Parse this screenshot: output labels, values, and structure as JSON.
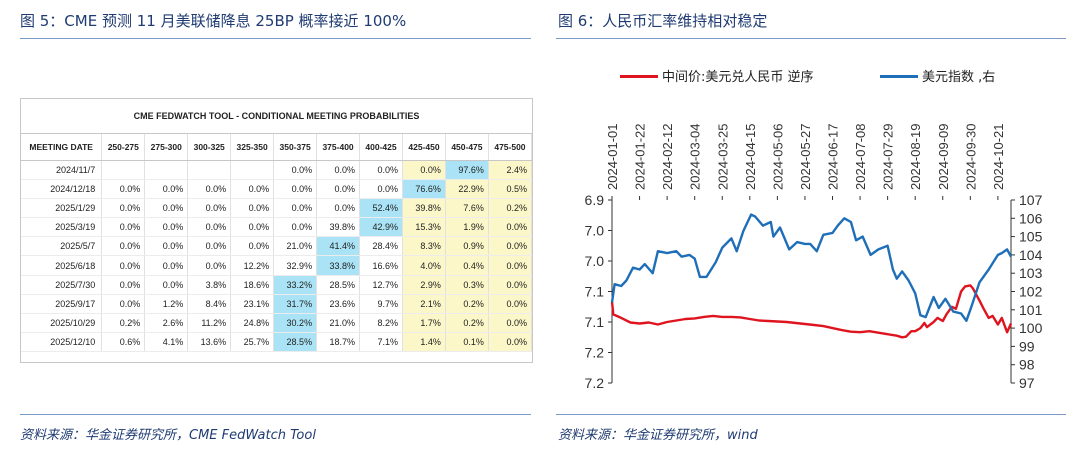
{
  "left": {
    "title": "图 5：CME 预测 11 月美联储降息 25BP 概率接近 100%",
    "source": "资料来源：华金证券研究所，CME FedWatch Tool"
  },
  "right": {
    "title": "图 6：人民币汇率维持相对稳定",
    "source": "资料来源：华金证券研究所，wind"
  },
  "colors": {
    "red": "#e0141e",
    "blue": "#1f6fb8",
    "highlight": "#a9e3f5",
    "yellow": "#fbf7c8"
  },
  "chart_data": [
    {
      "type": "table",
      "title": "CME FEDWATCH TOOL - CONDITIONAL MEETING PROBABILITIES",
      "columns": [
        "MEETING DATE",
        "250-275",
        "275-300",
        "300-325",
        "325-350",
        "350-375",
        "375-400",
        "400-425",
        "425-450",
        "450-475",
        "475-500"
      ],
      "rows": [
        [
          "2024/11/7",
          "",
          "",
          "",
          "",
          "0.0%",
          "0.0%",
          "0.0%",
          "0.0%",
          "97.6%",
          "2.4%"
        ],
        [
          "2024/12/18",
          "0.0%",
          "0.0%",
          "0.0%",
          "0.0%",
          "0.0%",
          "0.0%",
          "0.0%",
          "76.6%",
          "22.9%",
          "0.5%"
        ],
        [
          "2025/1/29",
          "0.0%",
          "0.0%",
          "0.0%",
          "0.0%",
          "0.0%",
          "0.0%",
          "52.4%",
          "39.8%",
          "7.6%",
          "0.2%"
        ],
        [
          "2025/3/19",
          "0.0%",
          "0.0%",
          "0.0%",
          "0.0%",
          "0.0%",
          "39.8%",
          "42.9%",
          "15.3%",
          "1.9%",
          "0.0%"
        ],
        [
          "2025/5/7",
          "0.0%",
          "0.0%",
          "0.0%",
          "0.0%",
          "21.0%",
          "41.4%",
          "28.4%",
          "8.3%",
          "0.9%",
          "0.0%"
        ],
        [
          "2025/6/18",
          "0.0%",
          "0.0%",
          "0.0%",
          "12.2%",
          "32.9%",
          "33.8%",
          "16.6%",
          "4.0%",
          "0.4%",
          "0.0%"
        ],
        [
          "2025/7/30",
          "0.0%",
          "0.0%",
          "3.8%",
          "18.6%",
          "33.2%",
          "28.5%",
          "12.7%",
          "2.9%",
          "0.3%",
          "0.0%"
        ],
        [
          "2025/9/17",
          "0.0%",
          "1.2%",
          "8.4%",
          "23.1%",
          "31.7%",
          "23.6%",
          "9.7%",
          "2.1%",
          "0.2%",
          "0.0%"
        ],
        [
          "2025/10/29",
          "0.2%",
          "2.6%",
          "11.2%",
          "24.8%",
          "30.2%",
          "21.0%",
          "8.2%",
          "1.7%",
          "0.2%",
          "0.0%"
        ],
        [
          "2025/12/10",
          "0.6%",
          "4.1%",
          "13.6%",
          "25.7%",
          "28.5%",
          "18.7%",
          "7.1%",
          "1.4%",
          "0.1%",
          "0.0%"
        ]
      ],
      "highlight_cells": [
        [
          0,
          9
        ],
        [
          1,
          8
        ],
        [
          2,
          7
        ],
        [
          3,
          7
        ],
        [
          4,
          6
        ],
        [
          5,
          6
        ],
        [
          6,
          5
        ],
        [
          7,
          5
        ],
        [
          8,
          5
        ],
        [
          9,
          5
        ]
      ]
    },
    {
      "type": "line",
      "x_dates": [
        "2024-01-01",
        "2024-01-22",
        "2024-02-12",
        "2024-03-04",
        "2024-03-25",
        "2024-04-15",
        "2024-05-06",
        "2024-05-27",
        "2024-06-17",
        "2024-07-08",
        "2024-07-29",
        "2024-08-19",
        "2024-09-09",
        "2024-09-30",
        "2024-10-21"
      ],
      "x_range": [
        "2024-01-01",
        "2024-10-31"
      ],
      "left_axis": {
        "ticks": [
          "6.9",
          "7.0",
          "7.0",
          "7.1",
          "7.1",
          "7.2",
          "7.2"
        ],
        "ylim": [
          6.9,
          7.26
        ],
        "inverted": true
      },
      "right_axis": {
        "ticks": [
          "107",
          "106",
          "105",
          "104",
          "103",
          "102",
          "101",
          "100",
          "99",
          "98",
          "97"
        ],
        "ylim": [
          97,
          107
        ]
      },
      "series": [
        {
          "name": "中间价:美元兑人民币 逆序",
          "axis": "left",
          "color": "#e0141e",
          "points": [
            [
              "2024-01-01",
              7.1
            ],
            [
              "2024-01-02",
              7.125
            ],
            [
              "2024-01-08",
              7.132
            ],
            [
              "2024-01-15",
              7.141
            ],
            [
              "2024-01-22",
              7.143
            ],
            [
              "2024-01-29",
              7.141
            ],
            [
              "2024-02-05",
              7.145
            ],
            [
              "2024-02-12",
              7.14
            ],
            [
              "2024-02-19",
              7.137
            ],
            [
              "2024-02-26",
              7.134
            ],
            [
              "2024-03-04",
              7.133
            ],
            [
              "2024-03-11",
              7.13
            ],
            [
              "2024-03-18",
              7.128
            ],
            [
              "2024-03-25",
              7.13
            ],
            [
              "2024-04-01",
              7.13
            ],
            [
              "2024-04-08",
              7.131
            ],
            [
              "2024-04-15",
              7.134
            ],
            [
              "2024-04-22",
              7.137
            ],
            [
              "2024-04-29",
              7.138
            ],
            [
              "2024-05-06",
              7.139
            ],
            [
              "2024-05-13",
              7.14
            ],
            [
              "2024-05-20",
              7.142
            ],
            [
              "2024-05-27",
              7.144
            ],
            [
              "2024-06-03",
              7.146
            ],
            [
              "2024-06-10",
              7.148
            ],
            [
              "2024-06-17",
              7.152
            ],
            [
              "2024-06-24",
              7.156
            ],
            [
              "2024-07-01",
              7.159
            ],
            [
              "2024-07-08",
              7.16
            ],
            [
              "2024-07-15",
              7.158
            ],
            [
              "2024-07-22",
              7.161
            ],
            [
              "2024-07-29",
              7.164
            ],
            [
              "2024-08-05",
              7.167
            ],
            [
              "2024-08-09",
              7.17
            ],
            [
              "2024-08-12",
              7.169
            ],
            [
              "2024-08-16",
              7.158
            ],
            [
              "2024-08-19",
              7.158
            ],
            [
              "2024-08-23",
              7.152
            ],
            [
              "2024-08-26",
              7.142
            ],
            [
              "2024-08-28",
              7.15
            ],
            [
              "2024-09-02",
              7.14
            ],
            [
              "2024-09-05",
              7.132
            ],
            [
              "2024-09-09",
              7.138
            ],
            [
              "2024-09-12",
              7.124
            ],
            [
              "2024-09-16",
              7.11
            ],
            [
              "2024-09-19",
              7.114
            ],
            [
              "2024-09-23",
              7.08
            ],
            [
              "2024-09-26",
              7.07
            ],
            [
              "2024-09-30",
              7.068
            ],
            [
              "2024-10-02",
              7.074
            ],
            [
              "2024-10-07",
              7.098
            ],
            [
              "2024-10-10",
              7.113
            ],
            [
              "2024-10-14",
              7.132
            ],
            [
              "2024-10-17",
              7.128
            ],
            [
              "2024-10-21",
              7.145
            ],
            [
              "2024-10-24",
              7.132
            ],
            [
              "2024-10-28",
              7.16
            ],
            [
              "2024-10-31",
              7.143
            ]
          ]
        },
        {
          "name": "美元指数 ,右",
          "axis": "right",
          "color": "#1f6fb8",
          "points": [
            [
              "2024-01-01",
              101.4
            ],
            [
              "2024-01-03",
              102.4
            ],
            [
              "2024-01-08",
              102.3
            ],
            [
              "2024-01-12",
              102.6
            ],
            [
              "2024-01-17",
              103.3
            ],
            [
              "2024-01-22",
              103.2
            ],
            [
              "2024-01-26",
              103.5
            ],
            [
              "2024-02-01",
              103.0
            ],
            [
              "2024-02-05",
              104.2
            ],
            [
              "2024-02-12",
              104.1
            ],
            [
              "2024-02-19",
              104.2
            ],
            [
              "2024-02-23",
              103.9
            ],
            [
              "2024-02-29",
              104.0
            ],
            [
              "2024-03-04",
              103.8
            ],
            [
              "2024-03-08",
              102.8
            ],
            [
              "2024-03-13",
              102.8
            ],
            [
              "2024-03-20",
              103.6
            ],
            [
              "2024-03-25",
              104.4
            ],
            [
              "2024-04-01",
              104.9
            ],
            [
              "2024-04-05",
              104.2
            ],
            [
              "2024-04-10",
              105.3
            ],
            [
              "2024-04-16",
              106.2
            ],
            [
              "2024-04-19",
              106.1
            ],
            [
              "2024-04-25",
              105.6
            ],
            [
              "2024-05-01",
              105.8
            ],
            [
              "2024-05-03",
              105.0
            ],
            [
              "2024-05-08",
              105.5
            ],
            [
              "2024-05-15",
              104.3
            ],
            [
              "2024-05-21",
              104.7
            ],
            [
              "2024-05-27",
              104.6
            ],
            [
              "2024-05-31",
              104.6
            ],
            [
              "2024-06-05",
              104.2
            ],
            [
              "2024-06-10",
              105.1
            ],
            [
              "2024-06-17",
              105.2
            ],
            [
              "2024-06-21",
              105.6
            ],
            [
              "2024-06-26",
              106.0
            ],
            [
              "2024-07-01",
              105.8
            ],
            [
              "2024-07-05",
              104.8
            ],
            [
              "2024-07-10",
              105.0
            ],
            [
              "2024-07-16",
              104.0
            ],
            [
              "2024-07-22",
              104.3
            ],
            [
              "2024-07-29",
              104.5
            ],
            [
              "2024-08-02",
              103.2
            ],
            [
              "2024-08-05",
              102.7
            ],
            [
              "2024-08-09",
              103.1
            ],
            [
              "2024-08-14",
              102.6
            ],
            [
              "2024-08-19",
              101.9
            ],
            [
              "2024-08-23",
              100.7
            ],
            [
              "2024-08-27",
              100.6
            ],
            [
              "2024-09-02",
              101.7
            ],
            [
              "2024-09-06",
              101.1
            ],
            [
              "2024-09-11",
              101.6
            ],
            [
              "2024-09-17",
              100.9
            ],
            [
              "2024-09-23",
              100.8
            ],
            [
              "2024-09-27",
              100.4
            ],
            [
              "2024-10-01",
              101.2
            ],
            [
              "2024-10-07",
              102.5
            ],
            [
              "2024-10-14",
              103.2
            ],
            [
              "2024-10-21",
              104.0
            ],
            [
              "2024-10-24",
              104.1
            ],
            [
              "2024-10-28",
              104.3
            ],
            [
              "2024-10-31",
              103.9
            ]
          ]
        }
      ]
    }
  ]
}
